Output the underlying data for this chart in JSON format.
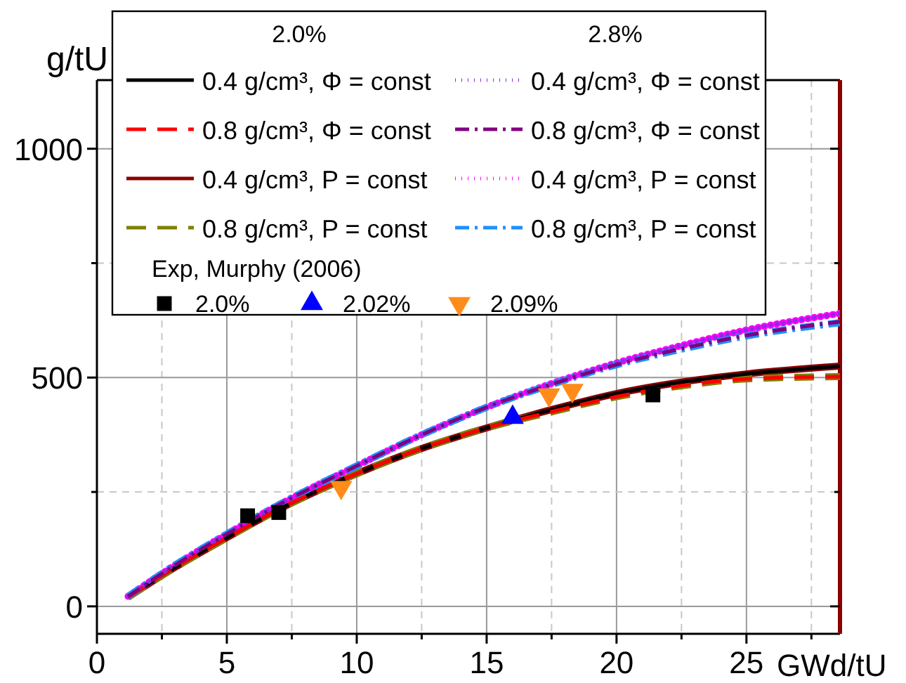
{
  "chart_data": {
    "type": "line",
    "xlabel": "GWd/tU",
    "ylabel": "g/tU",
    "xlim": [
      0,
      28.6
    ],
    "ylim": [
      -60,
      1150
    ],
    "xticks": [
      0,
      {
        "value": 2.5,
        "label": null
      },
      5,
      {
        "value": 7.5,
        "label": null
      },
      10,
      {
        "value": 12.5,
        "label": null
      },
      15,
      {
        "value": 17.5,
        "label": null
      },
      20,
      {
        "value": 22.5,
        "label": null
      },
      25,
      {
        "value": 27.5,
        "label": null
      }
    ],
    "yticks": [
      0,
      {
        "value": 250,
        "label": null
      },
      500,
      {
        "value": 750,
        "label": null
      },
      1000
    ],
    "grid": true,
    "legend": "top",
    "legend_title": "Exp, Murphy (2006)",
    "annotations": [
      "2.0%",
      "2.8%"
    ],
    "ref_lines": [
      {
        "axis": "x",
        "value": 28.6,
        "color": "#8b0000"
      }
    ],
    "series": [
      {
        "name": "0.4 g/cm³, Φ = const",
        "color": "#000000",
        "line_style": "solid",
        "x": [
          1.2,
          3,
          5,
          7,
          10,
          12.5,
          15,
          17.5,
          20,
          22.5,
          25,
          28.6
        ],
        "values": [
          20,
          85,
          150,
          212,
          290,
          345,
          390,
          430,
          465,
          490,
          508,
          525
        ]
      },
      {
        "name": "0.8 g/cm³, Φ = const",
        "color": "#ff0000",
        "line_style": "dashed",
        "x": [
          1.2,
          3,
          5,
          7,
          10,
          12.5,
          15,
          17.5,
          20,
          22.5,
          25,
          28.6
        ],
        "values": [
          20,
          85,
          150,
          212,
          290,
          345,
          390,
          425,
          458,
          482,
          497,
          502
        ]
      },
      {
        "name": "0.4 g/cm³, P = const",
        "color": "#8b0000",
        "line_style": "solid",
        "x": [
          1.2,
          3,
          5,
          7,
          10,
          12.5,
          15,
          17.5,
          20,
          22.5,
          25,
          28.6
        ],
        "values": [
          20,
          85,
          150,
          212,
          290,
          345,
          390,
          430,
          465,
          490,
          508,
          525
        ]
      },
      {
        "name": "0.8 g/cm³, P = const",
        "color": "#808000",
        "line_style": "dashed",
        "x": [
          1.2,
          3,
          5,
          7,
          10,
          12.5,
          15,
          17.5,
          20,
          22.5,
          25,
          28.6
        ],
        "values": [
          20,
          85,
          150,
          212,
          290,
          345,
          390,
          425,
          458,
          482,
          497,
          502
        ]
      },
      {
        "name": "0.4 g/cm³, Φ = const",
        "color": "#8a2be2",
        "line_style": "dotted",
        "x": [
          1.2,
          3,
          5,
          7,
          10,
          12.5,
          15,
          17.5,
          20,
          22.5,
          25,
          28.6
        ],
        "values": [
          22,
          90,
          158,
          222,
          307,
          375,
          435,
          487,
          532,
          570,
          604,
          640
        ]
      },
      {
        "name": "0.8 g/cm³, Φ = const",
        "color": "#800080",
        "line_style": "dashdot",
        "x": [
          1.2,
          3,
          5,
          7,
          10,
          12.5,
          15,
          17.5,
          20,
          22.5,
          25,
          28.6
        ],
        "values": [
          22,
          90,
          158,
          222,
          307,
          375,
          435,
          485,
          528,
          563,
          592,
          622
        ]
      },
      {
        "name": "0.4 g/cm³, P = const",
        "color": "#ff00ff",
        "line_style": "dotted",
        "x": [
          1.2,
          3,
          5,
          7,
          10,
          12.5,
          15,
          17.5,
          20,
          22.5,
          25,
          28.6
        ],
        "values": [
          22,
          90,
          158,
          222,
          307,
          375,
          435,
          487,
          532,
          570,
          604,
          640
        ]
      },
      {
        "name": "0.8 g/cm³, P = const",
        "color": "#1e90ff",
        "line_style": "dashdot",
        "x": [
          1.2,
          3,
          5,
          7,
          10,
          12.5,
          15,
          17.5,
          20,
          22.5,
          25,
          28.6
        ],
        "values": [
          22,
          90,
          158,
          222,
          307,
          375,
          435,
          485,
          528,
          562,
          591,
          620
        ]
      },
      {
        "name": "2.0%",
        "type": "scatter",
        "marker": "square",
        "color": "#000000",
        "x": [
          5.8,
          7,
          21.4
        ],
        "values": [
          198,
          205,
          462
        ]
      },
      {
        "name": "2.02%",
        "type": "scatter",
        "marker": "triangle",
        "color": "#0000ff",
        "x": [
          16
        ],
        "values": [
          413
        ]
      },
      {
        "name": "2.09%",
        "type": "scatter",
        "marker": "triangle-down",
        "color": "#ff8c1a",
        "x": [
          9.4,
          17.4,
          18.3
        ],
        "values": [
          260,
          462,
          472
        ]
      }
    ]
  }
}
